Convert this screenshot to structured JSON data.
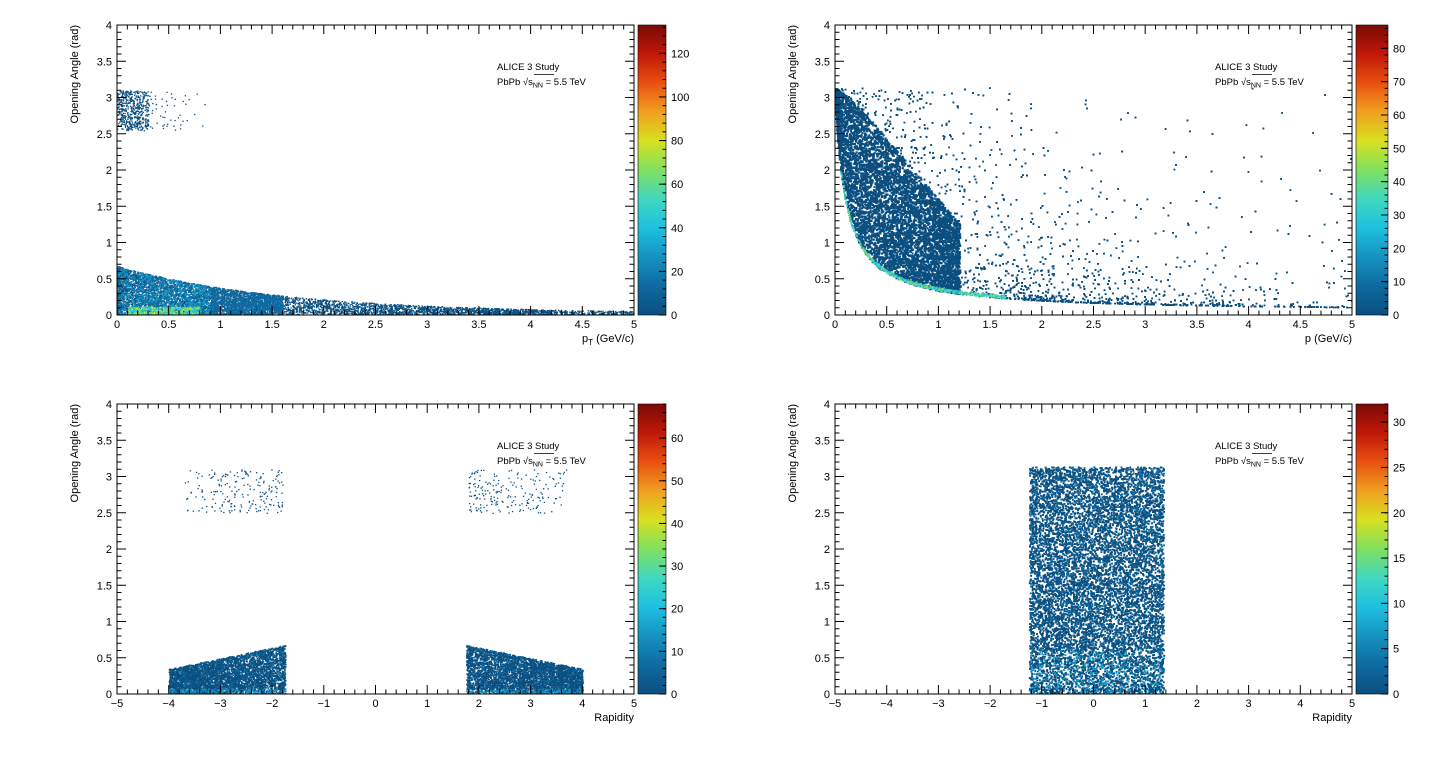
{
  "chart_data": [
    {
      "type": "heatmap",
      "xlabel": "p",
      "xlabel_sub": "T",
      "xlabel_tail": " (GeV/c)",
      "ylabel": "Opening Angle (rad)",
      "xlim": [
        0,
        5
      ],
      "ylim": [
        0,
        4
      ],
      "xticks": [
        "0",
        "0.5",
        "1",
        "1.5",
        "2",
        "2.5",
        "3",
        "3.5",
        "4",
        "4.5",
        "5"
      ],
      "yticks": [
        "0",
        "0.5",
        "1",
        "1.5",
        "2",
        "2.5",
        "3",
        "3.5",
        "4"
      ],
      "zlim": [
        0,
        133
      ],
      "zticks": [
        "0",
        "20",
        "40",
        "60",
        "80",
        "100",
        "120"
      ],
      "annotation": {
        "line1": "ALICE 3 Study",
        "line2_a": "PbPb ",
        "line2_sqrt": "s",
        "line2_sub": "NN",
        "line2_b": " = 5.5 TeV"
      },
      "regions": [
        {
          "shape": "band_decay",
          "x": [
            0,
            5
          ],
          "y0": 0.65,
          "y1": 0.03,
          "density": 0.9
        },
        {
          "shape": "blob",
          "x": [
            0.0,
            0.35
          ],
          "y": [
            2.55,
            3.1
          ],
          "density": 0.5
        },
        {
          "shape": "hot",
          "x": [
            0.1,
            0.8
          ],
          "y": [
            0,
            0.15
          ],
          "level": 80
        }
      ]
    },
    {
      "type": "heatmap",
      "xlabel": "p (GeV/c)",
      "ylabel": "Opening Angle (rad)",
      "xlim": [
        0,
        5
      ],
      "ylim": [
        0,
        4
      ],
      "xticks": [
        "0",
        "0.5",
        "1",
        "1.5",
        "2",
        "2.5",
        "3",
        "3.5",
        "4",
        "4.5",
        "5"
      ],
      "yticks": [
        "0",
        "0.5",
        "1",
        "1.5",
        "2",
        "2.5",
        "3",
        "3.5",
        "4"
      ],
      "zlim": [
        0,
        87
      ],
      "zticks": [
        "0",
        "10",
        "20",
        "30",
        "40",
        "50",
        "60",
        "70",
        "80"
      ],
      "annotation": {
        "line1": "ALICE 3 Study",
        "line2_a": "PbPb ",
        "line2_sqrt": "s",
        "line2_sub": "NN",
        "line2_b": " = 5.5 TeV"
      },
      "regions": [
        {
          "shape": "fill_above_curve",
          "x": [
            0,
            5
          ],
          "curve": "1/(p+0.3)-ish",
          "top": 3.14,
          "density": 1.0
        },
        {
          "shape": "hot_curve",
          "x": [
            0.05,
            1.6
          ],
          "level": 30
        }
      ]
    },
    {
      "type": "heatmap",
      "xlabel": "Rapidity",
      "ylabel": "Opening Angle (rad)",
      "xlim": [
        -5,
        5
      ],
      "ylim": [
        0,
        4
      ],
      "xticks": [
        "−5",
        "−4",
        "−3",
        "−2",
        "−1",
        "0",
        "1",
        "2",
        "3",
        "4",
        "5"
      ],
      "yticks": [
        "0",
        "0.5",
        "1",
        "1.5",
        "2",
        "2.5",
        "3",
        "3.5",
        "4"
      ],
      "zlim": [
        0,
        68
      ],
      "zticks": [
        "0",
        "10",
        "20",
        "30",
        "40",
        "50",
        "60"
      ],
      "annotation": {
        "line1": "ALICE 3 Study",
        "line2_a": "PbPb ",
        "line2_sqrt": "s",
        "line2_sub": "NN",
        "line2_b": " = 5.5 TeV"
      },
      "regions": [
        {
          "shape": "band",
          "x": [
            -4.0,
            -1.75
          ],
          "y_low": 0.35,
          "y_high": 0.68,
          "density": 1.0
        },
        {
          "shape": "band",
          "x": [
            1.75,
            4.0
          ],
          "y_low": 0.68,
          "y_high": 0.35,
          "density": 1.0
        },
        {
          "shape": "blob",
          "x": [
            -3.7,
            -1.75
          ],
          "y": [
            2.5,
            3.1
          ],
          "density": 0.35
        },
        {
          "shape": "blob",
          "x": [
            1.75,
            3.7
          ],
          "y": [
            2.5,
            3.1
          ],
          "density": 0.35
        }
      ]
    },
    {
      "type": "heatmap",
      "xlabel": "Rapidity",
      "ylabel": "Opening Angle (rad)",
      "xlim": [
        -5,
        5
      ],
      "ylim": [
        0,
        4
      ],
      "xticks": [
        "−5",
        "−4",
        "−3",
        "−2",
        "−1",
        "0",
        "1",
        "2",
        "3",
        "4",
        "5"
      ],
      "yticks": [
        "0",
        "0.5",
        "1",
        "1.5",
        "2",
        "2.5",
        "3",
        "3.5",
        "4"
      ],
      "zlim": [
        0,
        32
      ],
      "zticks": [
        "0",
        "5",
        "10",
        "15",
        "20",
        "25",
        "30"
      ],
      "annotation": {
        "line1": "ALICE 3 Study",
        "line2_a": "PbPb ",
        "line2_sqrt": "s",
        "line2_sub": "NN",
        "line2_b": " = 5.5 TeV"
      },
      "regions": [
        {
          "shape": "box",
          "x": [
            -1.25,
            1.35
          ],
          "y": [
            0,
            3.14
          ],
          "density": 1.0
        }
      ]
    }
  ],
  "colors": {
    "palette": [
      "#0b4f80",
      "#0e6aa0",
      "#1593c0",
      "#1ec0e0",
      "#40d8c0",
      "#80e060",
      "#d8e020",
      "#f0a020",
      "#e85010",
      "#c01808",
      "#7a0a06"
    ],
    "background": "#ffffff",
    "axis": "#000000"
  }
}
